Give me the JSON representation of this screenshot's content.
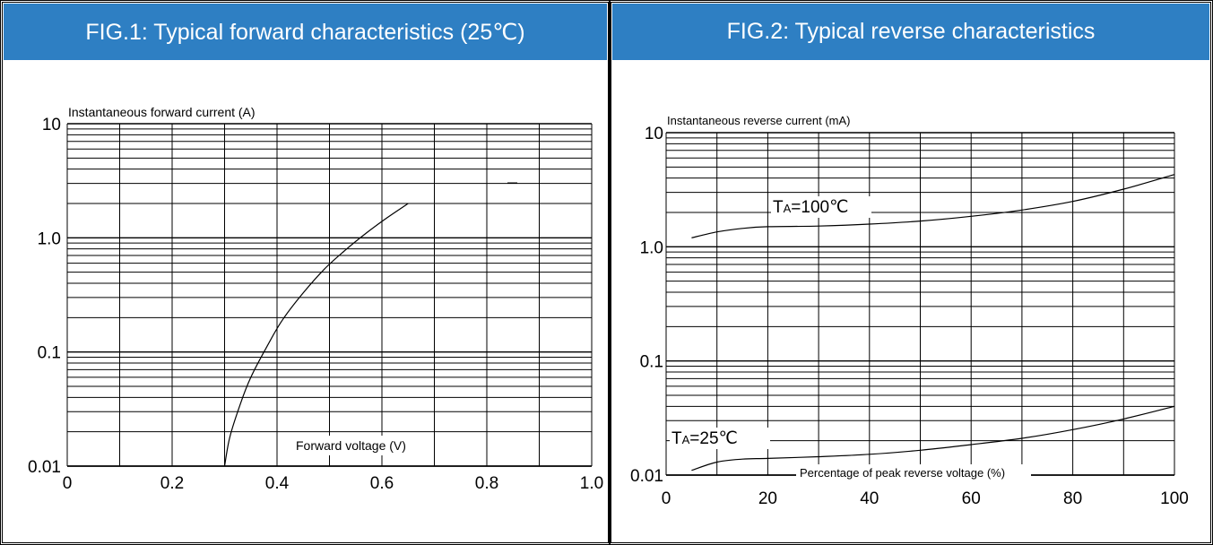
{
  "fig1": {
    "title": "FIG.1: Typical forward characteristics (25℃)",
    "header_color": "#2e7fc3"
  },
  "fig2": {
    "title": "FIG.2: Typical reverse characteristics",
    "header_color": "#2e7fc3"
  },
  "chart_data": [
    {
      "type": "line",
      "title": "FIG.1: Typical forward characteristics (25℃)",
      "xlabel": "Forward voltage (V)",
      "ylabel": "Instantaneous forward current (A)",
      "xlim": [
        0,
        1.0
      ],
      "ylim": [
        0.01,
        10
      ],
      "yscale": "log",
      "grid": true,
      "x_ticks": [
        "0",
        "0.2",
        "0.4",
        "0.6",
        "0.8",
        "1.0"
      ],
      "y_ticks": [
        "0.01",
        "0.1",
        "1.0",
        "10"
      ],
      "series": [
        {
          "x": [
            0.3,
            0.31,
            0.33,
            0.35,
            0.38,
            0.41,
            0.45,
            0.49,
            0.53,
            0.57,
            0.61,
            0.65
          ],
          "y": [
            0.01,
            0.018,
            0.035,
            0.06,
            0.11,
            0.19,
            0.33,
            0.53,
            0.78,
            1.1,
            1.5,
            2.0
          ]
        }
      ]
    },
    {
      "type": "line",
      "title": "FIG.2: Typical reverse characteristics",
      "xlabel": "Percentage of peak reverse voltage (%)",
      "ylabel": "Instantaneous reverse current (mA)",
      "xlim": [
        0,
        100
      ],
      "ylim": [
        0.01,
        10
      ],
      "yscale": "log",
      "grid": true,
      "x_ticks": [
        "0",
        "20",
        "40",
        "60",
        "80",
        "100"
      ],
      "y_ticks": [
        "0.01",
        "0.1",
        "1.0",
        "10"
      ],
      "series": [
        {
          "name": "TA=100℃",
          "name_main": "T",
          "name_sub": "A",
          "name_rest": "=100℃",
          "x": [
            5,
            10,
            15,
            20,
            30,
            40,
            50,
            60,
            70,
            80,
            90,
            100
          ],
          "y": [
            1.2,
            1.35,
            1.45,
            1.5,
            1.52,
            1.58,
            1.68,
            1.85,
            2.1,
            2.5,
            3.2,
            4.3
          ]
        },
        {
          "name": "TA=25℃",
          "name_main": "T",
          "name_sub": "A",
          "name_rest": "=25℃",
          "x": [
            5,
            10,
            15,
            20,
            30,
            40,
            50,
            60,
            70,
            80,
            90,
            100
          ],
          "y": [
            0.011,
            0.013,
            0.0138,
            0.014,
            0.0145,
            0.0152,
            0.0165,
            0.0185,
            0.021,
            0.025,
            0.031,
            0.04
          ]
        }
      ]
    }
  ]
}
